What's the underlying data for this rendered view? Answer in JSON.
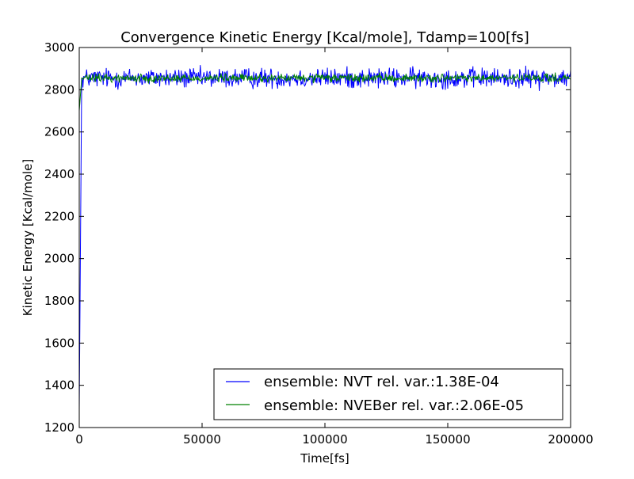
{
  "chart_data": {
    "type": "line",
    "title": "Convergence Kinetic Energy [Kcal/mole], Tdamp=100[fs]",
    "xlabel": "Time[fs]",
    "ylabel": "Kinetic Energy [Kcal/mole]",
    "xlim": [
      0,
      200000
    ],
    "ylim": [
      1200,
      3000
    ],
    "xticks": [
      0,
      50000,
      100000,
      150000,
      200000
    ],
    "xtick_labels": [
      "0",
      "50000",
      "100000",
      "150000",
      "200000"
    ],
    "yticks": [
      1200,
      1400,
      1600,
      1800,
      2000,
      2200,
      2400,
      2600,
      2800,
      3000
    ],
    "ytick_labels": [
      "1200",
      "1400",
      "1600",
      "1800",
      "2000",
      "2200",
      "2400",
      "2600",
      "2800",
      "3000"
    ],
    "grid": false,
    "legend_position": "lower-right",
    "series": [
      {
        "name": "ensemble: NVT rel. var.:1.38E-04",
        "color": "#0000ff",
        "start_value": 1290,
        "mean": 2855,
        "noise_amplitude": 45,
        "x_start": 0,
        "x_end": 200000,
        "x_step": 250
      },
      {
        "name": "ensemble: NVEBer rel. var.:2.06E-05",
        "color": "#008000",
        "start_value": 2700,
        "mean": 2855,
        "noise_amplitude": 18,
        "x_start": 0,
        "x_end": 200000,
        "x_step": 250
      }
    ]
  }
}
